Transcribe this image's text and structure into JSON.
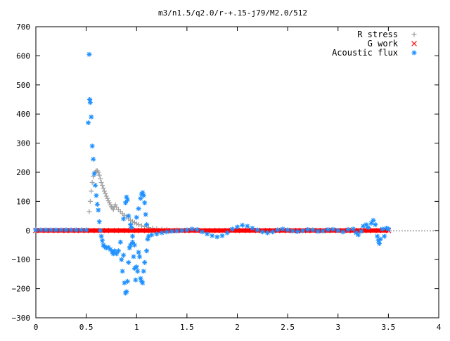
{
  "chart_data": {
    "type": "scatter",
    "title": "m3/n1.5/q2.0/r-+.15-j79/M2.0/512",
    "xlabel": "",
    "ylabel": "",
    "xlim": [
      0,
      4
    ],
    "ylim": [
      -300,
      700
    ],
    "xticks": [
      "0",
      "0.5",
      "1",
      "1.5",
      "2",
      "2.5",
      "3",
      "3.5",
      "4"
    ],
    "yticks": [
      "−300",
      "−200",
      "−100",
      "0",
      "100",
      "200",
      "300",
      "400",
      "500",
      "600",
      "700"
    ],
    "grid": false,
    "legend_position": "top-right",
    "series": [
      {
        "name": "R stress",
        "marker": "plus",
        "color": "#a0a0a0",
        "points": [
          [
            0.53,
            65
          ],
          [
            0.54,
            100
          ],
          [
            0.55,
            135
          ],
          [
            0.56,
            165
          ],
          [
            0.57,
            185
          ],
          [
            0.58,
            195
          ],
          [
            0.59,
            200
          ],
          [
            0.6,
            205
          ],
          [
            0.61,
            205
          ],
          [
            0.62,
            200
          ],
          [
            0.63,
            190
          ],
          [
            0.64,
            178
          ],
          [
            0.65,
            165
          ],
          [
            0.66,
            155
          ],
          [
            0.67,
            145
          ],
          [
            0.68,
            135
          ],
          [
            0.69,
            127
          ],
          [
            0.7,
            118
          ],
          [
            0.71,
            110
          ],
          [
            0.72,
            102
          ],
          [
            0.73,
            95
          ],
          [
            0.74,
            88
          ],
          [
            0.75,
            82
          ],
          [
            0.76,
            77
          ],
          [
            0.77,
            72
          ],
          [
            0.78,
            82
          ],
          [
            0.79,
            88
          ],
          [
            0.8,
            80
          ],
          [
            0.82,
            72
          ],
          [
            0.84,
            65
          ],
          [
            0.86,
            58
          ],
          [
            0.88,
            52
          ],
          [
            0.9,
            46
          ],
          [
            0.92,
            40
          ],
          [
            0.94,
            35
          ],
          [
            0.96,
            31
          ],
          [
            0.98,
            27
          ],
          [
            1.0,
            23
          ],
          [
            1.02,
            20
          ],
          [
            1.05,
            16
          ],
          [
            1.08,
            13
          ],
          [
            1.12,
            10
          ],
          [
            1.16,
            8
          ],
          [
            1.2,
            6
          ],
          [
            1.25,
            4
          ],
          [
            1.3,
            3
          ],
          [
            1.4,
            2
          ],
          [
            1.5,
            1
          ]
        ]
      },
      {
        "name": "G work",
        "marker": "cross",
        "color": "#ff0000",
        "points": [
          [
            0.0,
            0
          ],
          [
            0.1,
            0
          ],
          [
            0.2,
            0
          ],
          [
            0.3,
            0
          ],
          [
            0.4,
            0
          ],
          [
            0.5,
            0
          ],
          [
            0.6,
            0
          ],
          [
            0.7,
            0
          ],
          [
            0.8,
            0
          ],
          [
            0.9,
            0
          ],
          [
            1.0,
            0
          ],
          [
            1.1,
            0
          ],
          [
            1.2,
            0
          ],
          [
            1.3,
            0
          ],
          [
            1.4,
            0
          ],
          [
            1.5,
            0
          ],
          [
            1.6,
            0
          ],
          [
            1.7,
            0
          ],
          [
            1.8,
            0
          ],
          [
            1.9,
            0
          ],
          [
            2.0,
            0
          ],
          [
            2.1,
            0
          ],
          [
            2.2,
            0
          ],
          [
            2.3,
            0
          ],
          [
            2.4,
            0
          ],
          [
            2.5,
            0
          ],
          [
            2.6,
            0
          ],
          [
            2.7,
            0
          ],
          [
            2.8,
            0
          ],
          [
            2.9,
            0
          ],
          [
            3.0,
            0
          ],
          [
            3.1,
            0
          ],
          [
            3.2,
            0
          ],
          [
            3.3,
            0
          ],
          [
            3.4,
            0
          ],
          [
            3.5,
            0
          ]
        ]
      },
      {
        "name": "Acoustic flux",
        "marker": "star",
        "color": "#1e90ff",
        "points": [
          [
            0.0,
            2
          ],
          [
            0.05,
            2
          ],
          [
            0.1,
            2
          ],
          [
            0.15,
            2
          ],
          [
            0.2,
            2
          ],
          [
            0.25,
            2
          ],
          [
            0.3,
            2
          ],
          [
            0.35,
            2
          ],
          [
            0.4,
            2
          ],
          [
            0.45,
            2
          ],
          [
            0.5,
            2
          ],
          [
            0.52,
            370
          ],
          [
            0.53,
            605
          ],
          [
            0.535,
            450
          ],
          [
            0.54,
            440
          ],
          [
            0.55,
            390
          ],
          [
            0.56,
            290
          ],
          [
            0.57,
            245
          ],
          [
            0.58,
            195
          ],
          [
            0.59,
            155
          ],
          [
            0.6,
            120
          ],
          [
            0.61,
            90
          ],
          [
            0.62,
            70
          ],
          [
            0.63,
            30
          ],
          [
            0.64,
            0
          ],
          [
            0.65,
            -20
          ],
          [
            0.66,
            -35
          ],
          [
            0.67,
            -50
          ],
          [
            0.68,
            -55
          ],
          [
            0.7,
            -60
          ],
          [
            0.72,
            -58
          ],
          [
            0.74,
            -65
          ],
          [
            0.76,
            -75
          ],
          [
            0.77,
            -80
          ],
          [
            0.78,
            -70
          ],
          [
            0.8,
            -80
          ],
          [
            0.82,
            -70
          ],
          [
            0.84,
            -40
          ],
          [
            0.85,
            -100
          ],
          [
            0.86,
            -140
          ],
          [
            0.87,
            -85
          ],
          [
            0.88,
            -180
          ],
          [
            0.89,
            -215
          ],
          [
            0.9,
            -210
          ],
          [
            0.91,
            -175
          ],
          [
            0.92,
            -110
          ],
          [
            0.93,
            -60
          ],
          [
            0.94,
            -50
          ],
          [
            0.95,
            10
          ],
          [
            0.96,
            -20
          ],
          [
            0.97,
            -90
          ],
          [
            0.98,
            -130
          ],
          [
            0.99,
            -170
          ],
          [
            1.0,
            -125
          ],
          [
            1.01,
            -140
          ],
          [
            1.02,
            -75
          ],
          [
            1.03,
            -90
          ],
          [
            1.04,
            -165
          ],
          [
            1.05,
            -175
          ],
          [
            1.06,
            -180
          ],
          [
            1.07,
            -140
          ],
          [
            1.08,
            -110
          ],
          [
            1.1,
            -70
          ],
          [
            1.11,
            -30
          ],
          [
            1.12,
            -20
          ],
          [
            0.87,
            40
          ],
          [
            0.89,
            95
          ],
          [
            0.9,
            115
          ],
          [
            0.91,
            105
          ],
          [
            0.92,
            50
          ],
          [
            0.94,
            20
          ],
          [
            0.96,
            -40
          ],
          [
            0.98,
            -50
          ],
          [
            1.0,
            45
          ],
          [
            1.02,
            75
          ],
          [
            1.04,
            110
          ],
          [
            1.05,
            125
          ],
          [
            1.06,
            130
          ],
          [
            1.07,
            120
          ],
          [
            1.08,
            95
          ],
          [
            1.09,
            55
          ],
          [
            1.1,
            20
          ],
          [
            1.15,
            -15
          ],
          [
            1.2,
            -12
          ],
          [
            1.25,
            -8
          ],
          [
            1.3,
            -5
          ],
          [
            1.35,
            -3
          ],
          [
            1.4,
            -2
          ],
          [
            1.45,
            0
          ],
          [
            1.5,
            2
          ],
          [
            1.55,
            5
          ],
          [
            1.6,
            3
          ],
          [
            1.65,
            -5
          ],
          [
            1.7,
            -12
          ],
          [
            1.75,
            -18
          ],
          [
            1.8,
            -22
          ],
          [
            1.85,
            -18
          ],
          [
            1.9,
            -8
          ],
          [
            1.95,
            5
          ],
          [
            2.0,
            12
          ],
          [
            2.05,
            18
          ],
          [
            2.1,
            15
          ],
          [
            2.15,
            8
          ],
          [
            2.2,
            2
          ],
          [
            2.25,
            -5
          ],
          [
            2.3,
            -8
          ],
          [
            2.35,
            -5
          ],
          [
            2.4,
            2
          ],
          [
            2.45,
            5
          ],
          [
            2.5,
            2
          ],
          [
            2.55,
            -2
          ],
          [
            2.6,
            -4
          ],
          [
            2.65,
            -1
          ],
          [
            2.7,
            3
          ],
          [
            2.75,
            2
          ],
          [
            2.8,
            -3
          ],
          [
            2.85,
            -2
          ],
          [
            2.9,
            3
          ],
          [
            2.95,
            4
          ],
          [
            3.0,
            0
          ],
          [
            3.05,
            -5
          ],
          [
            3.1,
            3
          ],
          [
            3.15,
            5
          ],
          [
            3.18,
            -8
          ],
          [
            3.2,
            -15
          ],
          [
            3.23,
            -3
          ],
          [
            3.25,
            15
          ],
          [
            3.28,
            20
          ],
          [
            3.3,
            10
          ],
          [
            3.33,
            25
          ],
          [
            3.35,
            35
          ],
          [
            3.37,
            20
          ],
          [
            3.39,
            -20
          ],
          [
            3.4,
            -35
          ],
          [
            3.41,
            -45
          ],
          [
            3.42,
            -30
          ],
          [
            3.44,
            5
          ],
          [
            3.46,
            -20
          ],
          [
            3.48,
            8
          ],
          [
            3.5,
            5
          ]
        ]
      }
    ]
  }
}
